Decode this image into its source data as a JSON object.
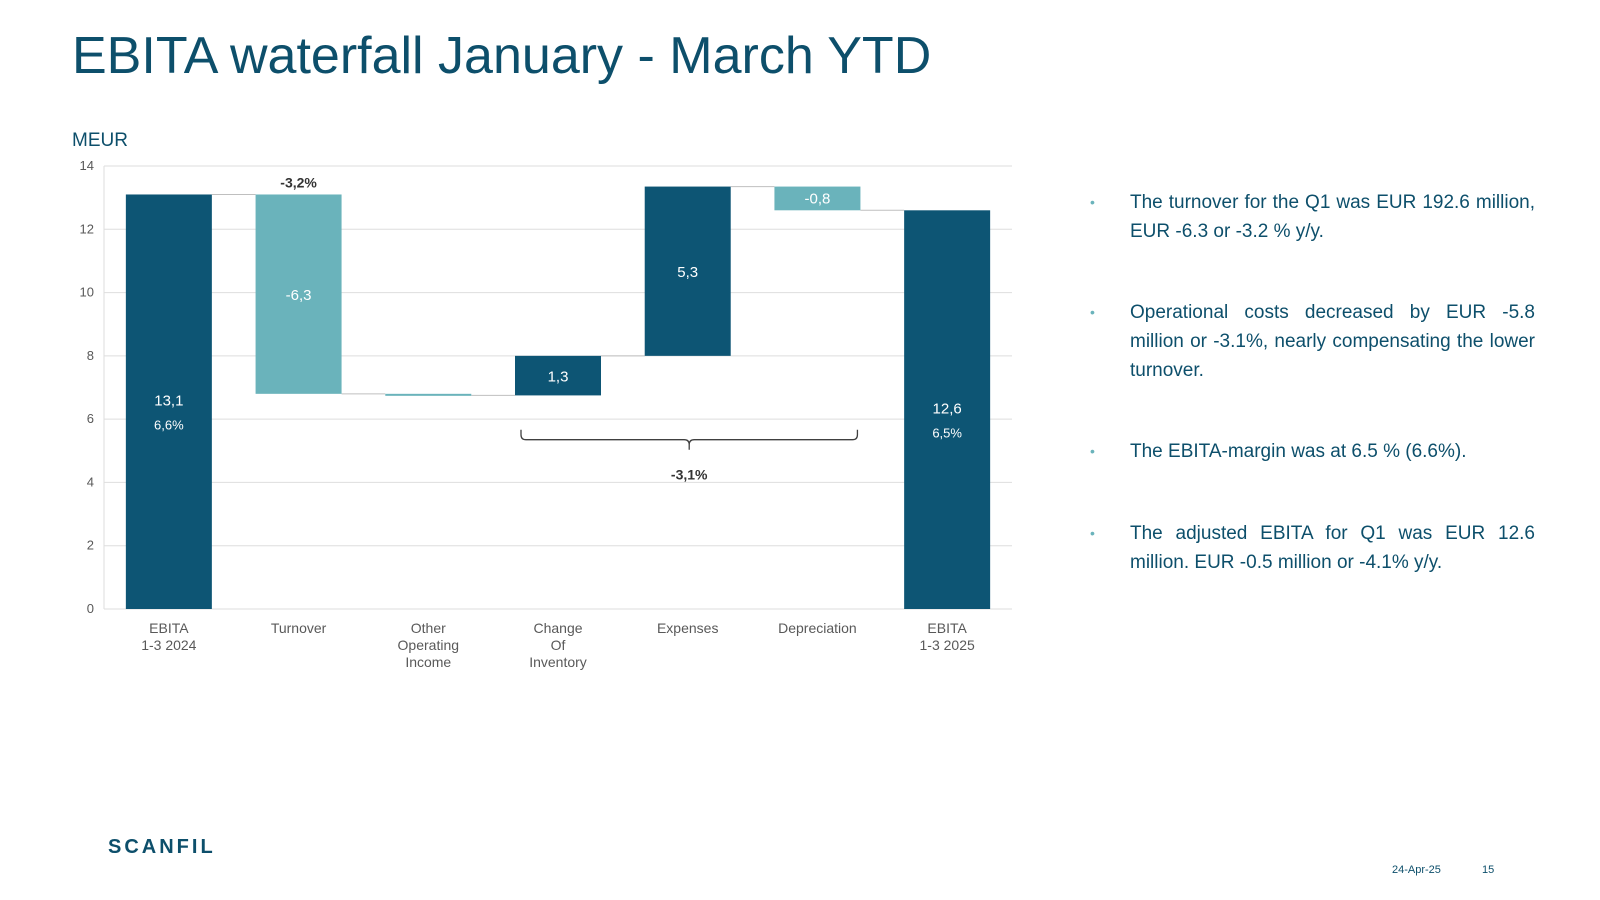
{
  "title": "EBITA waterfall January - March YTD",
  "unit_label": "MEUR",
  "colors": {
    "dark": "#0d5574",
    "light": "#6ab3bb",
    "grid": "#dedede",
    "text": "#0d4f6b"
  },
  "chart_data": {
    "type": "waterfall",
    "ylim": [
      0,
      14
    ],
    "yticks": [
      0,
      2,
      4,
      6,
      8,
      10,
      12,
      14
    ],
    "grid": true,
    "categories": [
      "EBITA\n1-3 2024",
      "Turnover",
      "Other\nOperating\nIncome",
      "Change\nOf\nInventory",
      "Expenses",
      "Depreciation",
      "EBITA\n1-3 2025"
    ],
    "bars": [
      {
        "kind": "total",
        "start": 0,
        "end": 13.1,
        "label": "13,1",
        "sublabel": "6,6%",
        "color": "dark"
      },
      {
        "kind": "delta",
        "start": 13.1,
        "end": 6.8,
        "label": "-6,3",
        "color": "light"
      },
      {
        "kind": "delta",
        "start": 6.8,
        "end": 6.75,
        "label": "",
        "color": "light"
      },
      {
        "kind": "delta",
        "start": 6.75,
        "end": 8.0,
        "label": "1,3",
        "color": "dark"
      },
      {
        "kind": "delta",
        "start": 8.0,
        "end": 13.35,
        "label": "5,3",
        "color": "dark"
      },
      {
        "kind": "delta",
        "start": 13.35,
        "end": 12.6,
        "label": "-0,8",
        "color": "light"
      },
      {
        "kind": "total",
        "start": 0,
        "end": 12.6,
        "label": "12,6",
        "sublabel": "6,5%",
        "color": "dark"
      }
    ],
    "annotations": [
      {
        "text": "-3,2%",
        "target": "Turnover"
      },
      {
        "text": "-3,1%",
        "target": "Change Of Inventory to Depreciation"
      }
    ]
  },
  "bullets": [
    "The turnover for the Q1 was EUR 192.6 million, EUR -6.3 or  -3.2 % y/y.",
    "Operational costs decreased by EUR -5.8 million or  -3.1%, nearly compensating the lower turnover.",
    "The EBITA-margin was at 6.5 % (6.6%).",
    "The adjusted EBITA for Q1 was EUR 12.6 million. EUR -0.5 million or -4.1% y/y."
  ],
  "bullet_marker": "•",
  "logo_text": "SCANFIL",
  "footer": {
    "date": "24-Apr-25",
    "page": "15"
  }
}
